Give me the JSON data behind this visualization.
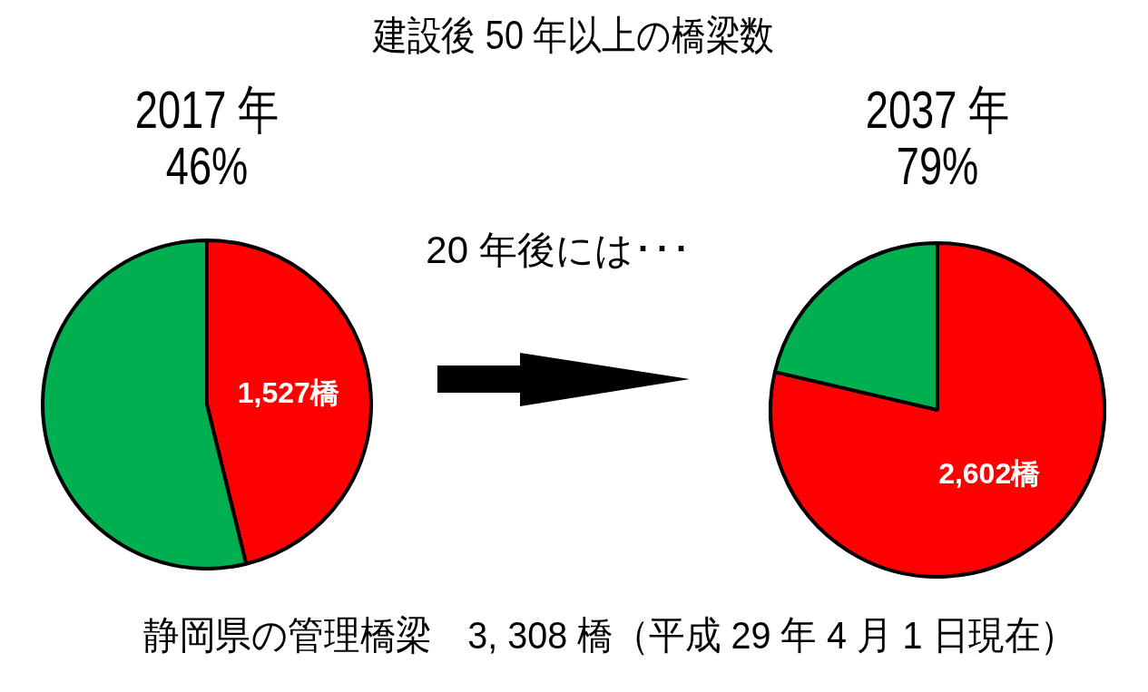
{
  "chart_data": [
    {
      "type": "other",
      "title": "建設後 50 年以上の橋梁数",
      "annotations": [
        "20 年後には･･･",
        "静岡県の管理橋梁　3, 308 橋（平成 29 年 4 月 1 日現在）"
      ]
    },
    {
      "type": "pie",
      "title": "2017 年",
      "subtitle": "46%",
      "categories": [
        null,
        null
      ],
      "values": [
        1527,
        1781
      ],
      "colors": [
        "#ff0000",
        "#00b050"
      ],
      "value_labels": [
        "1,527橋",
        null
      ]
    },
    {
      "type": "pie",
      "title": "2037 年",
      "subtitle": "79%",
      "categories": [
        null,
        null
      ],
      "values": [
        2602,
        706
      ],
      "colors": [
        "#ff0000",
        "#00b050"
      ],
      "value_labels": [
        "2,602橋",
        null
      ]
    }
  ]
}
